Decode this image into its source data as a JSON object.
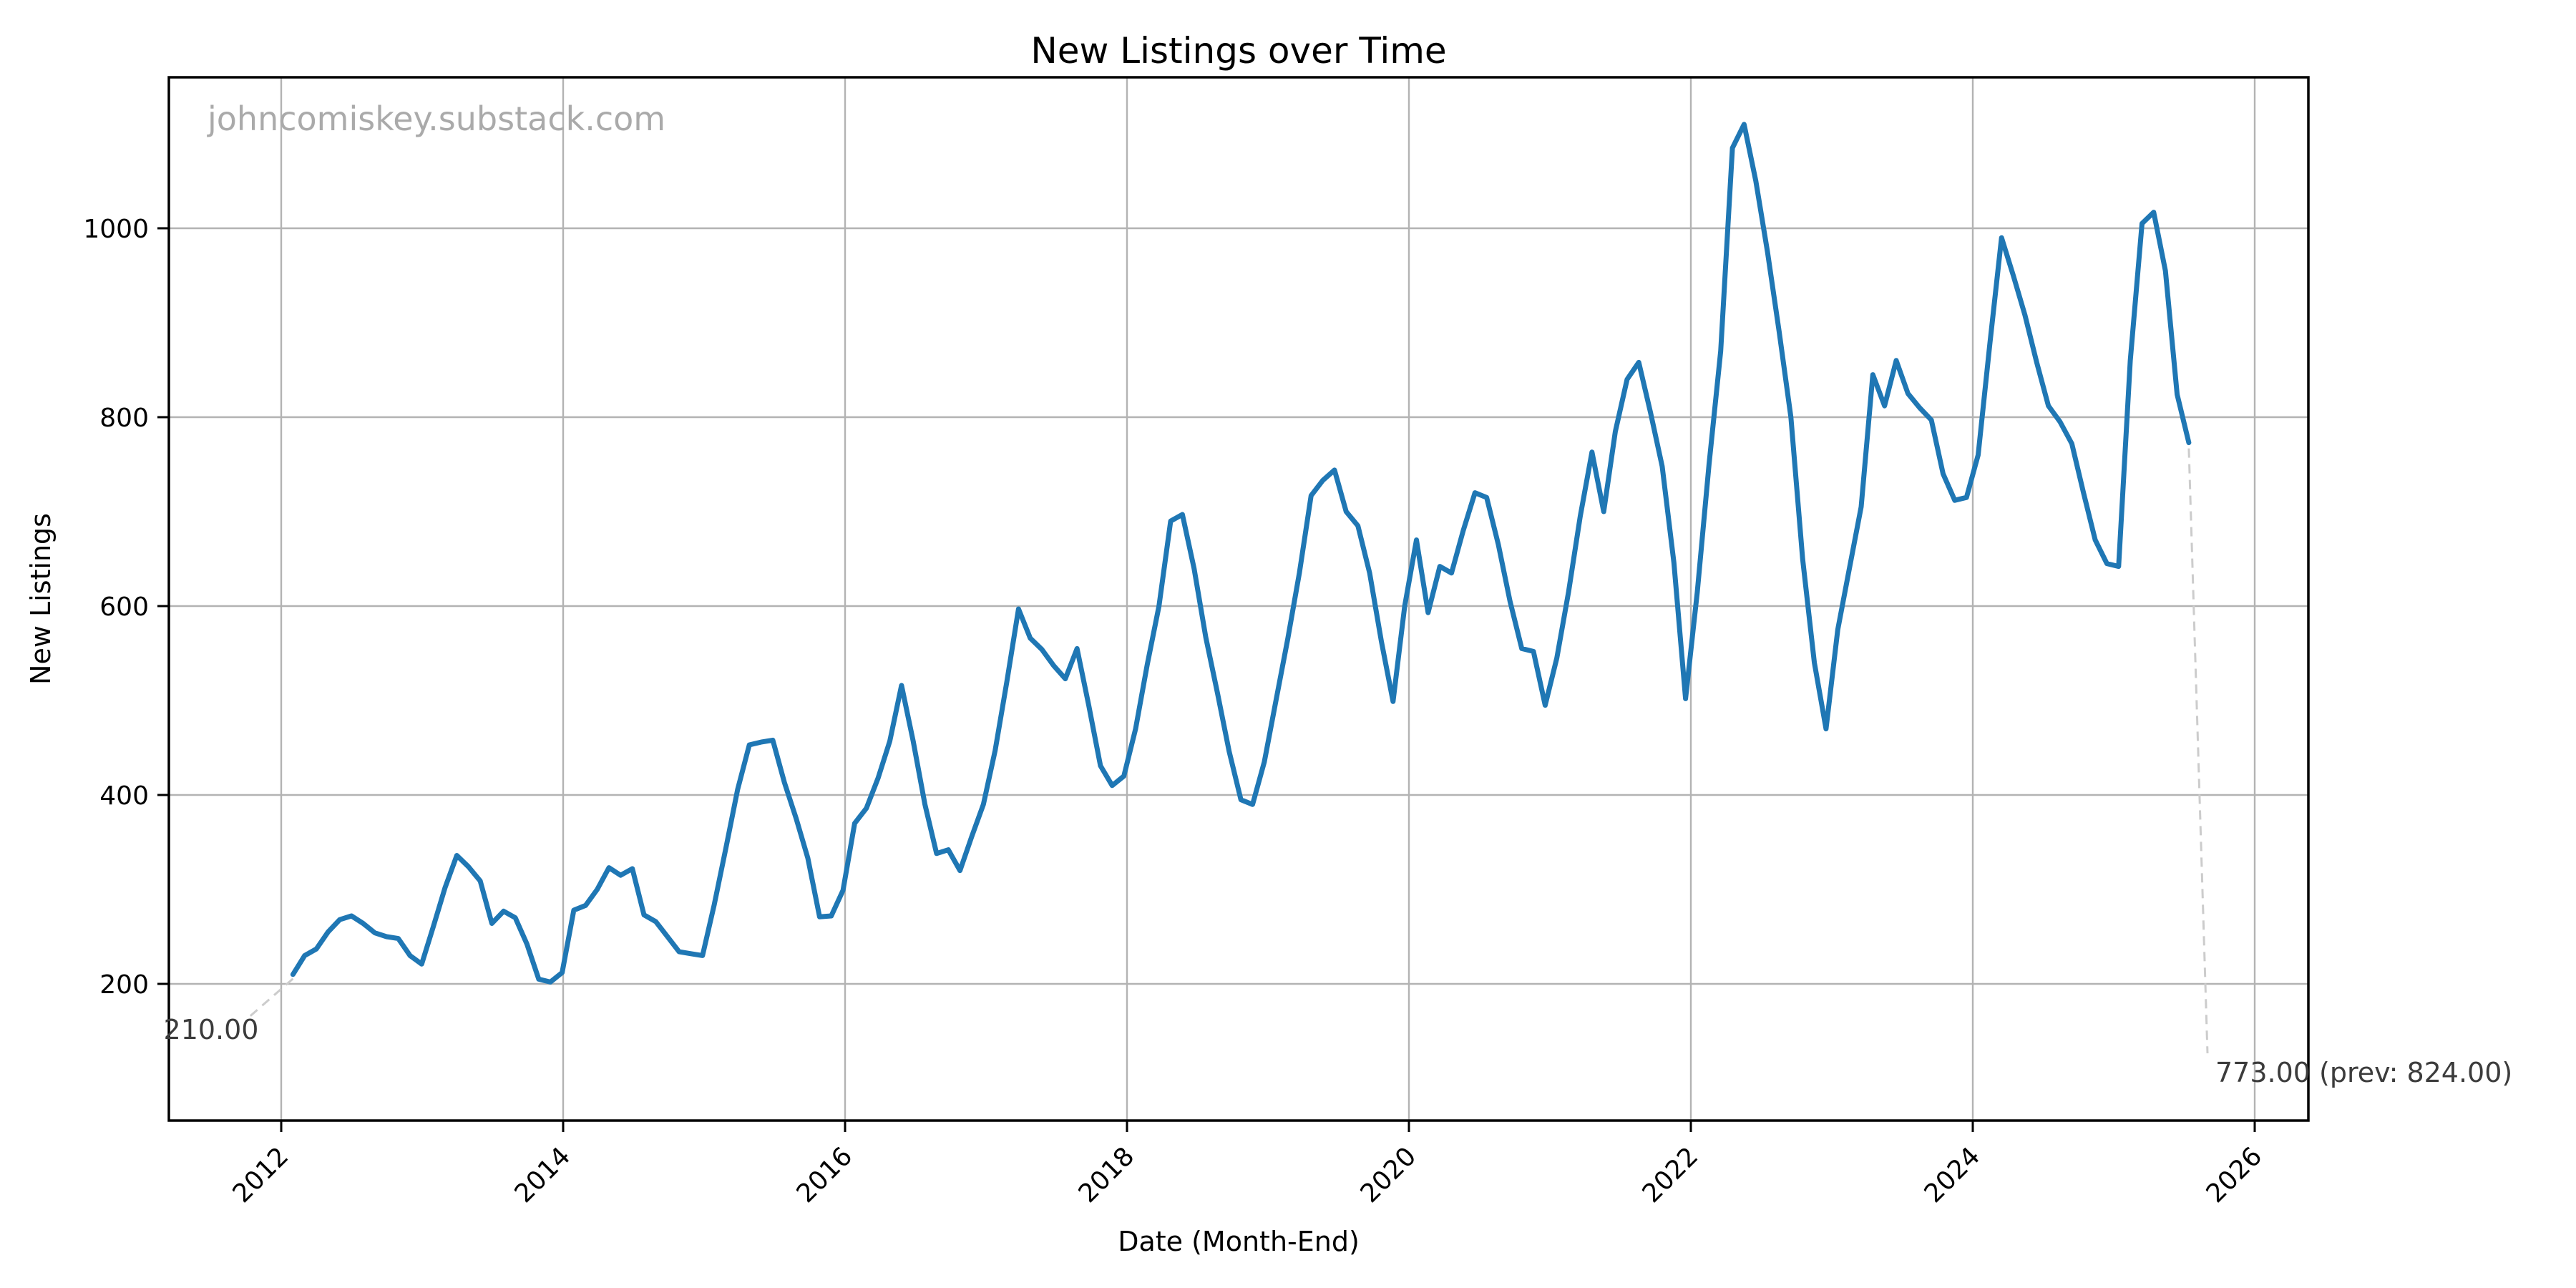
{
  "watermark": "johncomiskey.substack.com",
  "annotations": {
    "start_label": "210.00",
    "end_label": "773.00 (prev: 824.00)"
  },
  "chart_data": {
    "type": "line",
    "title": "New Listings over Time",
    "xlabel": "Date (Month-End)",
    "ylabel": "New Listings",
    "grid": true,
    "legend": "none",
    "x_start": "2012-01",
    "x_freq": "monthly",
    "x_tick_labels": [
      "2012",
      "2014",
      "2016",
      "2018",
      "2020",
      "2022",
      "2024",
      "2026"
    ],
    "y_tick_values": [
      200,
      400,
      600,
      800,
      1000
    ],
    "y_axis_range_approx": [
      55,
      1160
    ],
    "colors": {
      "line": "#1f77b4",
      "grid": "#b3b3b3",
      "spine": "#000000",
      "watermark": "#aaaaaa",
      "annotation": "#3c3c3c",
      "annotation_dash": "#cccccc",
      "background": "#ffffff"
    },
    "series": [
      {
        "name": "New Listings",
        "first_value": 210.0,
        "last_value": 773.0,
        "prev_value": 824.0,
        "values": [
          210,
          230,
          237,
          255,
          268,
          272,
          264,
          254,
          250,
          248,
          230,
          221,
          261,
          302,
          336,
          324,
          309,
          264,
          277,
          270,
          242,
          205,
          202,
          212,
          278,
          283,
          300,
          323,
          315,
          322,
          273,
          266,
          250,
          234,
          232,
          230,
          284,
          344,
          406,
          453,
          456,
          458,
          413,
          375,
          333,
          271,
          272,
          299,
          370,
          386,
          418,
          457,
          516,
          457,
          390,
          338,
          342,
          320,
          356,
          390,
          447,
          520,
          597,
          566,
          554,
          537,
          523,
          555,
          495,
          431,
          410,
          420,
          470,
          538,
          600,
          690,
          697,
          640,
          567,
          508,
          446,
          395,
          390,
          435,
          500,
          565,
          635,
          717,
          733,
          744,
          700,
          685,
          635,
          563,
          499,
          600,
          670,
          593,
          642,
          635,
          680,
          720,
          715,
          665,
          605,
          555,
          552,
          495,
          545,
          615,
          695,
          763,
          700,
          785,
          840,
          858,
          805,
          748,
          646,
          502,
          615,
          750,
          870,
          1085,
          1110,
          1050,
          975,
          890,
          800,
          650,
          540,
          470,
          575,
          640,
          705,
          845,
          812,
          860,
          825,
          810,
          797,
          740,
          712,
          715,
          760,
          878,
          990,
          950,
          908,
          858,
          812,
          795,
          772,
          720,
          670,
          645,
          642,
          860,
          1005,
          1017,
          955,
          824,
          773
        ]
      }
    ]
  }
}
